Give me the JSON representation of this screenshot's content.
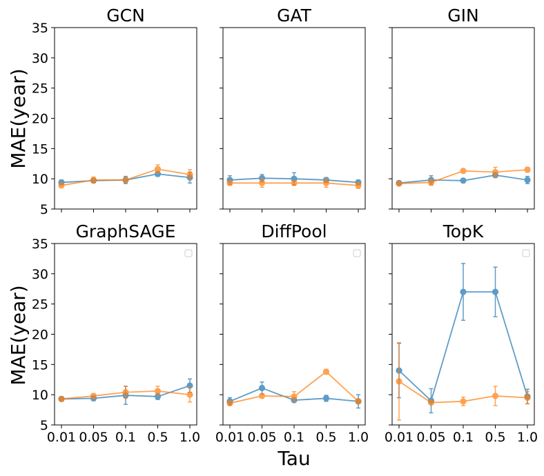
{
  "figure": {
    "ylabel": "MAE(year)",
    "xlabel": "Tau"
  },
  "colors": {
    "series_blue": "#1f77b4",
    "series_orange": "#ff7f0e"
  },
  "chart_data": [
    {
      "type": "line",
      "title": "GCN",
      "categories": [
        "0.01",
        "0.05",
        "0.1",
        "0.5",
        "1.0"
      ],
      "ylim": [
        5,
        35
      ],
      "yticks": [
        5,
        10,
        15,
        20,
        25,
        30,
        35
      ],
      "series": [
        {
          "name": "blue",
          "values": [
            9.4,
            9.7,
            9.8,
            10.8,
            10.2
          ],
          "errors": [
            0.4,
            0.3,
            0.6,
            0.4,
            0.9
          ]
        },
        {
          "name": "orange",
          "values": [
            8.9,
            9.8,
            9.8,
            11.6,
            10.7
          ],
          "errors": [
            0.3,
            0.5,
            0.4,
            0.7,
            0.8
          ]
        }
      ]
    },
    {
      "type": "line",
      "title": "GAT",
      "categories": [
        "0.01",
        "0.05",
        "0.1",
        "0.5",
        "1.0"
      ],
      "ylim": [
        5,
        35
      ],
      "yticks": [
        5,
        10,
        15,
        20,
        25,
        30,
        35
      ],
      "series": [
        {
          "name": "blue",
          "values": [
            9.8,
            10.1,
            10.0,
            9.8,
            9.4
          ],
          "errors": [
            0.7,
            0.6,
            1.0,
            0.4,
            0.4
          ]
        },
        {
          "name": "orange",
          "values": [
            9.3,
            9.3,
            9.3,
            9.3,
            8.9
          ],
          "errors": [
            0.4,
            0.7,
            0.4,
            0.7,
            0.5
          ]
        }
      ]
    },
    {
      "type": "line",
      "title": "GIN",
      "categories": [
        "0.01",
        "0.05",
        "0.1",
        "0.5",
        "1.0"
      ],
      "ylim": [
        5,
        35
      ],
      "yticks": [
        5,
        10,
        15,
        20,
        25,
        30,
        35
      ],
      "series": [
        {
          "name": "blue",
          "values": [
            9.3,
            9.8,
            9.7,
            10.6,
            9.8
          ],
          "errors": [
            0.3,
            0.7,
            0.3,
            0.4,
            0.6
          ]
        },
        {
          "name": "orange",
          "values": [
            9.2,
            9.4,
            11.3,
            11.1,
            11.5
          ],
          "errors": [
            0.3,
            0.5,
            0.3,
            0.8,
            0.4
          ]
        }
      ]
    },
    {
      "type": "line",
      "title": "GraphSAGE",
      "categories": [
        "0.01",
        "0.05",
        "0.1",
        "0.5",
        "1.0"
      ],
      "ylim": [
        5,
        35
      ],
      "yticks": [
        5,
        10,
        15,
        20,
        25,
        30,
        35
      ],
      "series": [
        {
          "name": "blue",
          "values": [
            9.3,
            9.4,
            9.9,
            9.7,
            11.5
          ],
          "errors": [
            0.3,
            0.4,
            1.5,
            0.5,
            1.1
          ]
        },
        {
          "name": "orange",
          "values": [
            9.3,
            9.8,
            10.4,
            10.6,
            10.0
          ],
          "errors": [
            0.4,
            0.4,
            1.0,
            0.8,
            1.2
          ]
        }
      ]
    },
    {
      "type": "line",
      "title": "DiffPool",
      "categories": [
        "0.01",
        "0.05",
        "0.1",
        "0.5",
        "1.0"
      ],
      "ylim": [
        5,
        35
      ],
      "yticks": [
        5,
        10,
        15,
        20,
        25,
        30,
        35
      ],
      "series": [
        {
          "name": "blue",
          "values": [
            8.9,
            11.1,
            9.1,
            9.4,
            8.9
          ],
          "errors": [
            0.6,
            1.0,
            0.3,
            0.5,
            1.1
          ]
        },
        {
          "name": "orange",
          "values": [
            8.6,
            9.8,
            9.7,
            13.8,
            8.9
          ],
          "errors": [
            0.3,
            0.3,
            0.8,
            0.4,
            0.4
          ]
        }
      ]
    },
    {
      "type": "line",
      "title": "TopK",
      "categories": [
        "0.01",
        "0.05",
        "0.1",
        "0.5",
        "1.0"
      ],
      "ylim": [
        5,
        35
      ],
      "yticks": [
        5,
        10,
        15,
        20,
        25,
        30,
        35
      ],
      "series": [
        {
          "name": "blue",
          "values": [
            14.0,
            9.0,
            27.0,
            27.0,
            9.7
          ],
          "errors": [
            4.5,
            2.0,
            4.7,
            4.1,
            1.2
          ]
        },
        {
          "name": "orange",
          "values": [
            12.2,
            8.7,
            8.9,
            9.8,
            9.5
          ],
          "errors": [
            6.4,
            0.3,
            0.7,
            1.6,
            1.0
          ]
        }
      ]
    }
  ]
}
